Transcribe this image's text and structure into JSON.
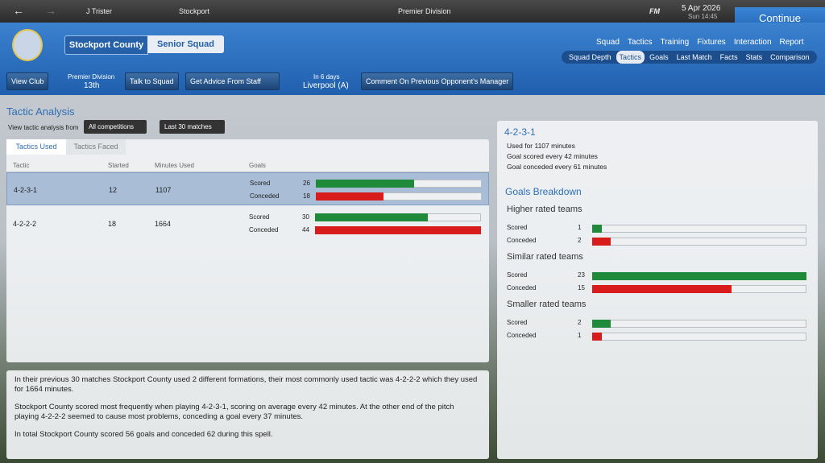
{
  "top_bar": {
    "manager": "J Trister",
    "club": "Stockport",
    "competition": "Premier Division",
    "fm": "FM",
    "date": "5 Apr 2026",
    "time": "Sun 14:45",
    "continue": "Continue"
  },
  "header": {
    "club": "Stockport County",
    "squad": "Senior Squad",
    "nav": [
      "Squad",
      "Tactics",
      "Training",
      "Fixtures",
      "Interaction",
      "Report"
    ],
    "subnav": [
      "Squad Depth",
      "Tactics",
      "Goals",
      "Last Match",
      "Facts",
      "Stats",
      "Comparison"
    ]
  },
  "toolbar": {
    "view_club": "View Club",
    "league": "Premier Division",
    "position": "13th",
    "talk": "Talk to Squad",
    "advice": "Get Advice From Staff",
    "next_when": "In 6 days",
    "next_opponent": "Liverpool (A)",
    "comment": "Comment On Previous Opponent's Manager"
  },
  "analysis": {
    "title": "Tactic Analysis",
    "filter_label": "View tactic analysis from",
    "filter_competition": "All competitions",
    "filter_period": "Last 30 matches",
    "tabs": [
      "Tactics Used",
      "Tactics Faced"
    ],
    "columns": [
      "Tactic",
      "Started",
      "Minutes Used",
      "Goals"
    ],
    "scored_label": "Scored",
    "conceded_label": "Conceded",
    "rows": [
      {
        "tactic": "4-2-3-1",
        "started": 12,
        "minutes": 1107,
        "scored": 26,
        "conceded": 18
      },
      {
        "tactic": "4-2-2-2",
        "started": 18,
        "minutes": 1664,
        "scored": 30,
        "conceded": 44
      }
    ]
  },
  "summary": {
    "paragraphs": [
      "In their previous 30 matches Stockport County used 2 different formations, their most commonly used tactic was 4-2-2-2 which they used for 1664 minutes.",
      "Stockport County scored most frequently when playing 4-2-3-1, scoring on average every 42 minutes. At the other end of the pitch playing 4-2-2-2 seemed to cause most problems, conceding a goal every 37 minutes.",
      "In total Stockport County scored 56 goals and conceded 62 during this spell."
    ]
  },
  "detail": {
    "tactic": "4-2-3-1",
    "lines": [
      "Used for 1107 minutes",
      "Goal scored every 42 minutes",
      "Goal conceded every 61 minutes"
    ],
    "breakdown_title": "Goals Breakdown",
    "scored_label": "Scored",
    "conceded_label": "Conceded",
    "groups": [
      {
        "title": "Higher rated teams",
        "scored": 1,
        "conceded": 2
      },
      {
        "title": "Similar rated teams",
        "scored": 23,
        "conceded": 15
      },
      {
        "title": "Smaller rated teams",
        "scored": 2,
        "conceded": 1
      }
    ]
  }
}
